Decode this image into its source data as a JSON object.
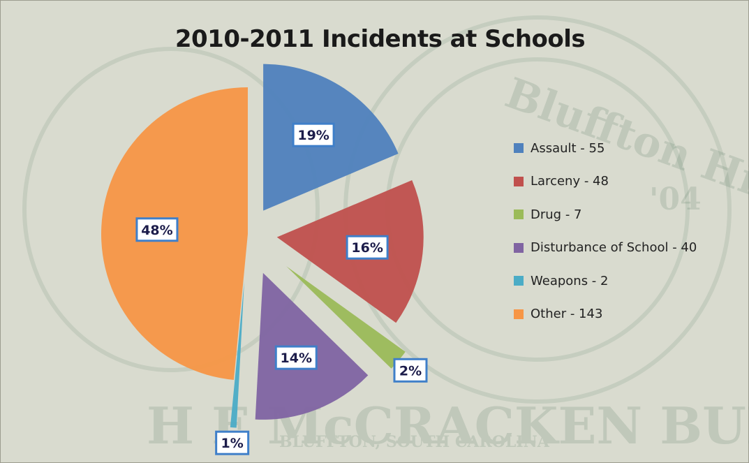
{
  "chart_data": {
    "type": "pie",
    "title": "2010-2011 Incidents at Schools",
    "slices": [
      {
        "label": "Assault - 55",
        "value": 55,
        "percent": "19%",
        "color": "#4f81bd",
        "explode": 40
      },
      {
        "label": "Larceny - 48",
        "value": 48,
        "percent": "16%",
        "color": "#c0504d",
        "explode": 42
      },
      {
        "label": "Drug - 7",
        "value": 7,
        "percent": "2%",
        "color": "#9bbb59",
        "explode": 72
      },
      {
        "label": "Disturbance of School - 40",
        "value": 40,
        "percent": "14%",
        "color": "#8064a2",
        "explode": 60
      },
      {
        "label": "Weapons - 2",
        "value": 2,
        "percent": "1%",
        "color": "#4bacc6",
        "explode": 68
      },
      {
        "label": "Other - 143",
        "value": 143,
        "percent": "48%",
        "color": "#f79646",
        "explode": 0
      }
    ],
    "legend_position": "right",
    "background_watermark": [
      "Bluffton High School",
      "H E McCRACKEN BULLDOGS",
      "BLUFFTON, SOUTH CAROLINA",
      "'04"
    ]
  }
}
